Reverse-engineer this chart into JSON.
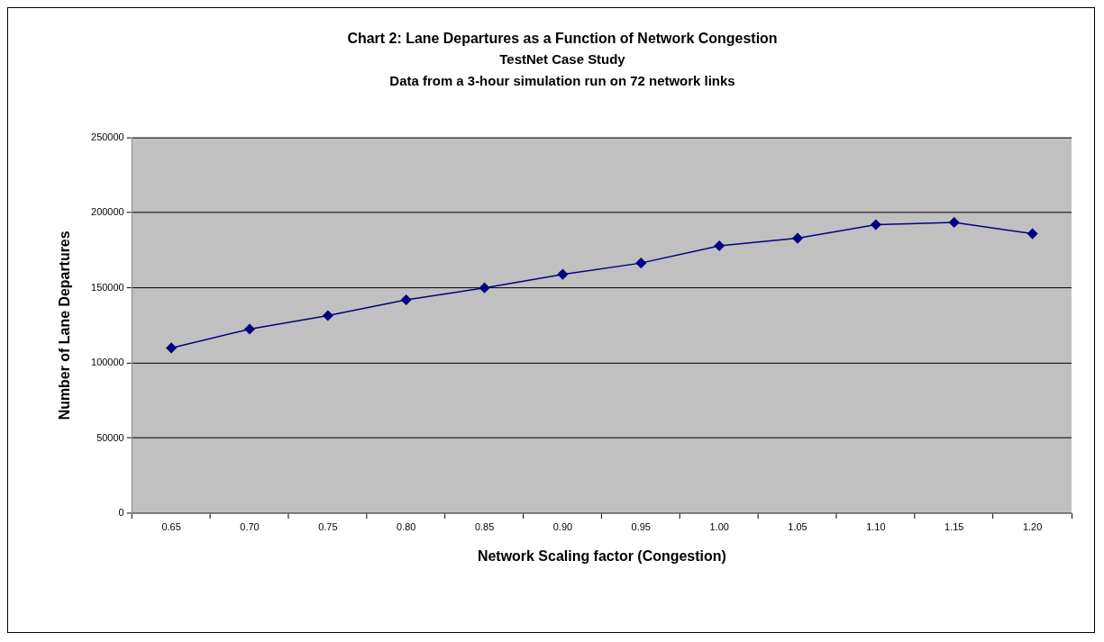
{
  "chart_data": {
    "type": "line",
    "title": "Chart 2: Lane Departures as a Function of Network Congestion",
    "subtitle": [
      "TestNet Case Study",
      "Data from a 3-hour simulation run on 72 network links"
    ],
    "xlabel": "Network Scaling factor (Congestion)",
    "ylabel": "Number of Lane Departures",
    "categories": [
      "0.65",
      "0.70",
      "0.75",
      "0.80",
      "0.85",
      "0.90",
      "0.95",
      "1.00",
      "1.05",
      "1.10",
      "1.15",
      "1.20"
    ],
    "series": [
      {
        "color": "#000080",
        "values": [
          110000,
          122500,
          131500,
          142000,
          150000,
          159000,
          166500,
          178000,
          183000,
          192000,
          193500,
          186000
        ]
      }
    ],
    "ylim": [
      0,
      250000
    ],
    "yticks": [
      0,
      50000,
      100000,
      150000,
      200000,
      250000
    ],
    "grid": "y",
    "legend": false,
    "marker": "diamond",
    "line_style": "solid"
  }
}
